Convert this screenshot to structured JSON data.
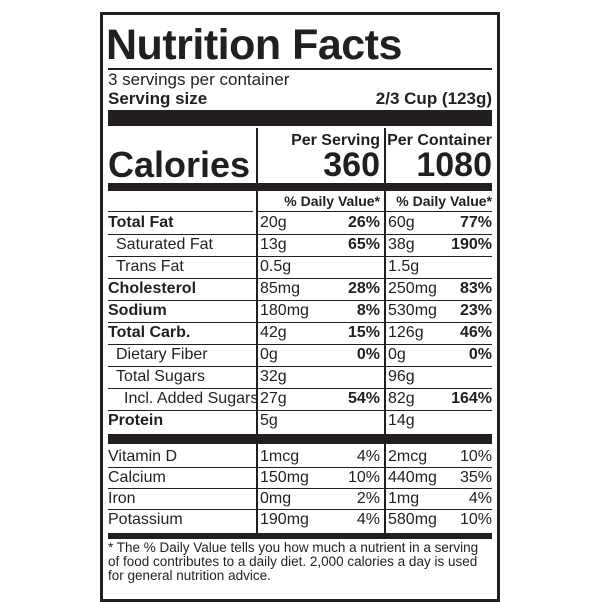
{
  "title": "Nutrition Facts",
  "servings": "3 servings per container",
  "serving_size": {
    "label": "Serving size",
    "value": "2/3 Cup (123g)"
  },
  "calories": {
    "label": "Calories",
    "per_serving_header": "Per Serving",
    "per_serving": "360",
    "per_container_header": "Per Container",
    "per_container": "1080"
  },
  "dv_header": {
    "serving": "% Daily Value*",
    "container": "% Daily Value*"
  },
  "nutrients": [
    {
      "name": "Total Fat",
      "bold": true,
      "indent": 0,
      "serving_amount": "20g",
      "serving_dv": "26%",
      "container_amount": "60g",
      "container_dv": "77%"
    },
    {
      "name": "Saturated Fat",
      "bold": false,
      "indent": 1,
      "serving_amount": "13g",
      "serving_dv": "65%",
      "container_amount": "38g",
      "container_dv": "190%"
    },
    {
      "name": "Trans Fat",
      "bold": false,
      "indent": 1,
      "serving_amount": "0.5g",
      "container_amount": "1.5g"
    },
    {
      "name": "Cholesterol",
      "bold": true,
      "indent": 0,
      "serving_amount": "85mg",
      "serving_dv": "28%",
      "container_amount": "250mg",
      "container_dv": "83%"
    },
    {
      "name": "Sodium",
      "bold": true,
      "indent": 0,
      "serving_amount": "180mg",
      "serving_dv": "8%",
      "container_amount": "530mg",
      "container_dv": "23%"
    },
    {
      "name": "Total Carb.",
      "bold": true,
      "indent": 0,
      "serving_amount": "42g",
      "serving_dv": "15%",
      "container_amount": "126g",
      "container_dv": "46%"
    },
    {
      "name": "Dietary Fiber",
      "bold": false,
      "indent": 1,
      "serving_amount": "0g",
      "serving_dv": "0%",
      "container_amount": "0g",
      "container_dv": "0%"
    },
    {
      "name": "Total Sugars",
      "bold": false,
      "indent": 1,
      "serving_amount": "32g",
      "container_amount": "96g"
    },
    {
      "name": "Incl. Added Sugars",
      "bold": false,
      "indent": 2,
      "serving_amount": "27g",
      "serving_dv": "54%",
      "container_amount": "82g",
      "container_dv": "164%"
    },
    {
      "name": "Protein",
      "bold": true,
      "indent": 0,
      "serving_amount": "5g",
      "container_amount": "14g"
    }
  ],
  "vitamins": [
    {
      "name": "Vitamin D",
      "serving_amount": "1mcg",
      "serving_dv": "4%",
      "container_amount": "2mcg",
      "container_dv": "10%"
    },
    {
      "name": "Calcium",
      "serving_amount": "150mg",
      "serving_dv": "10%",
      "container_amount": "440mg",
      "container_dv": "35%"
    },
    {
      "name": "Iron",
      "serving_amount": "0mg",
      "serving_dv": "2%",
      "container_amount": "1mg",
      "container_dv": "4%"
    },
    {
      "name": "Potassium",
      "serving_amount": "190mg",
      "serving_dv": "4%",
      "container_amount": "580mg",
      "container_dv": "10%"
    }
  ],
  "footnote": "* The % Daily Value tells you how much a nutrient in a serving of food contributes to a daily diet. 2,000 calories a day is used for general nutrition advice."
}
